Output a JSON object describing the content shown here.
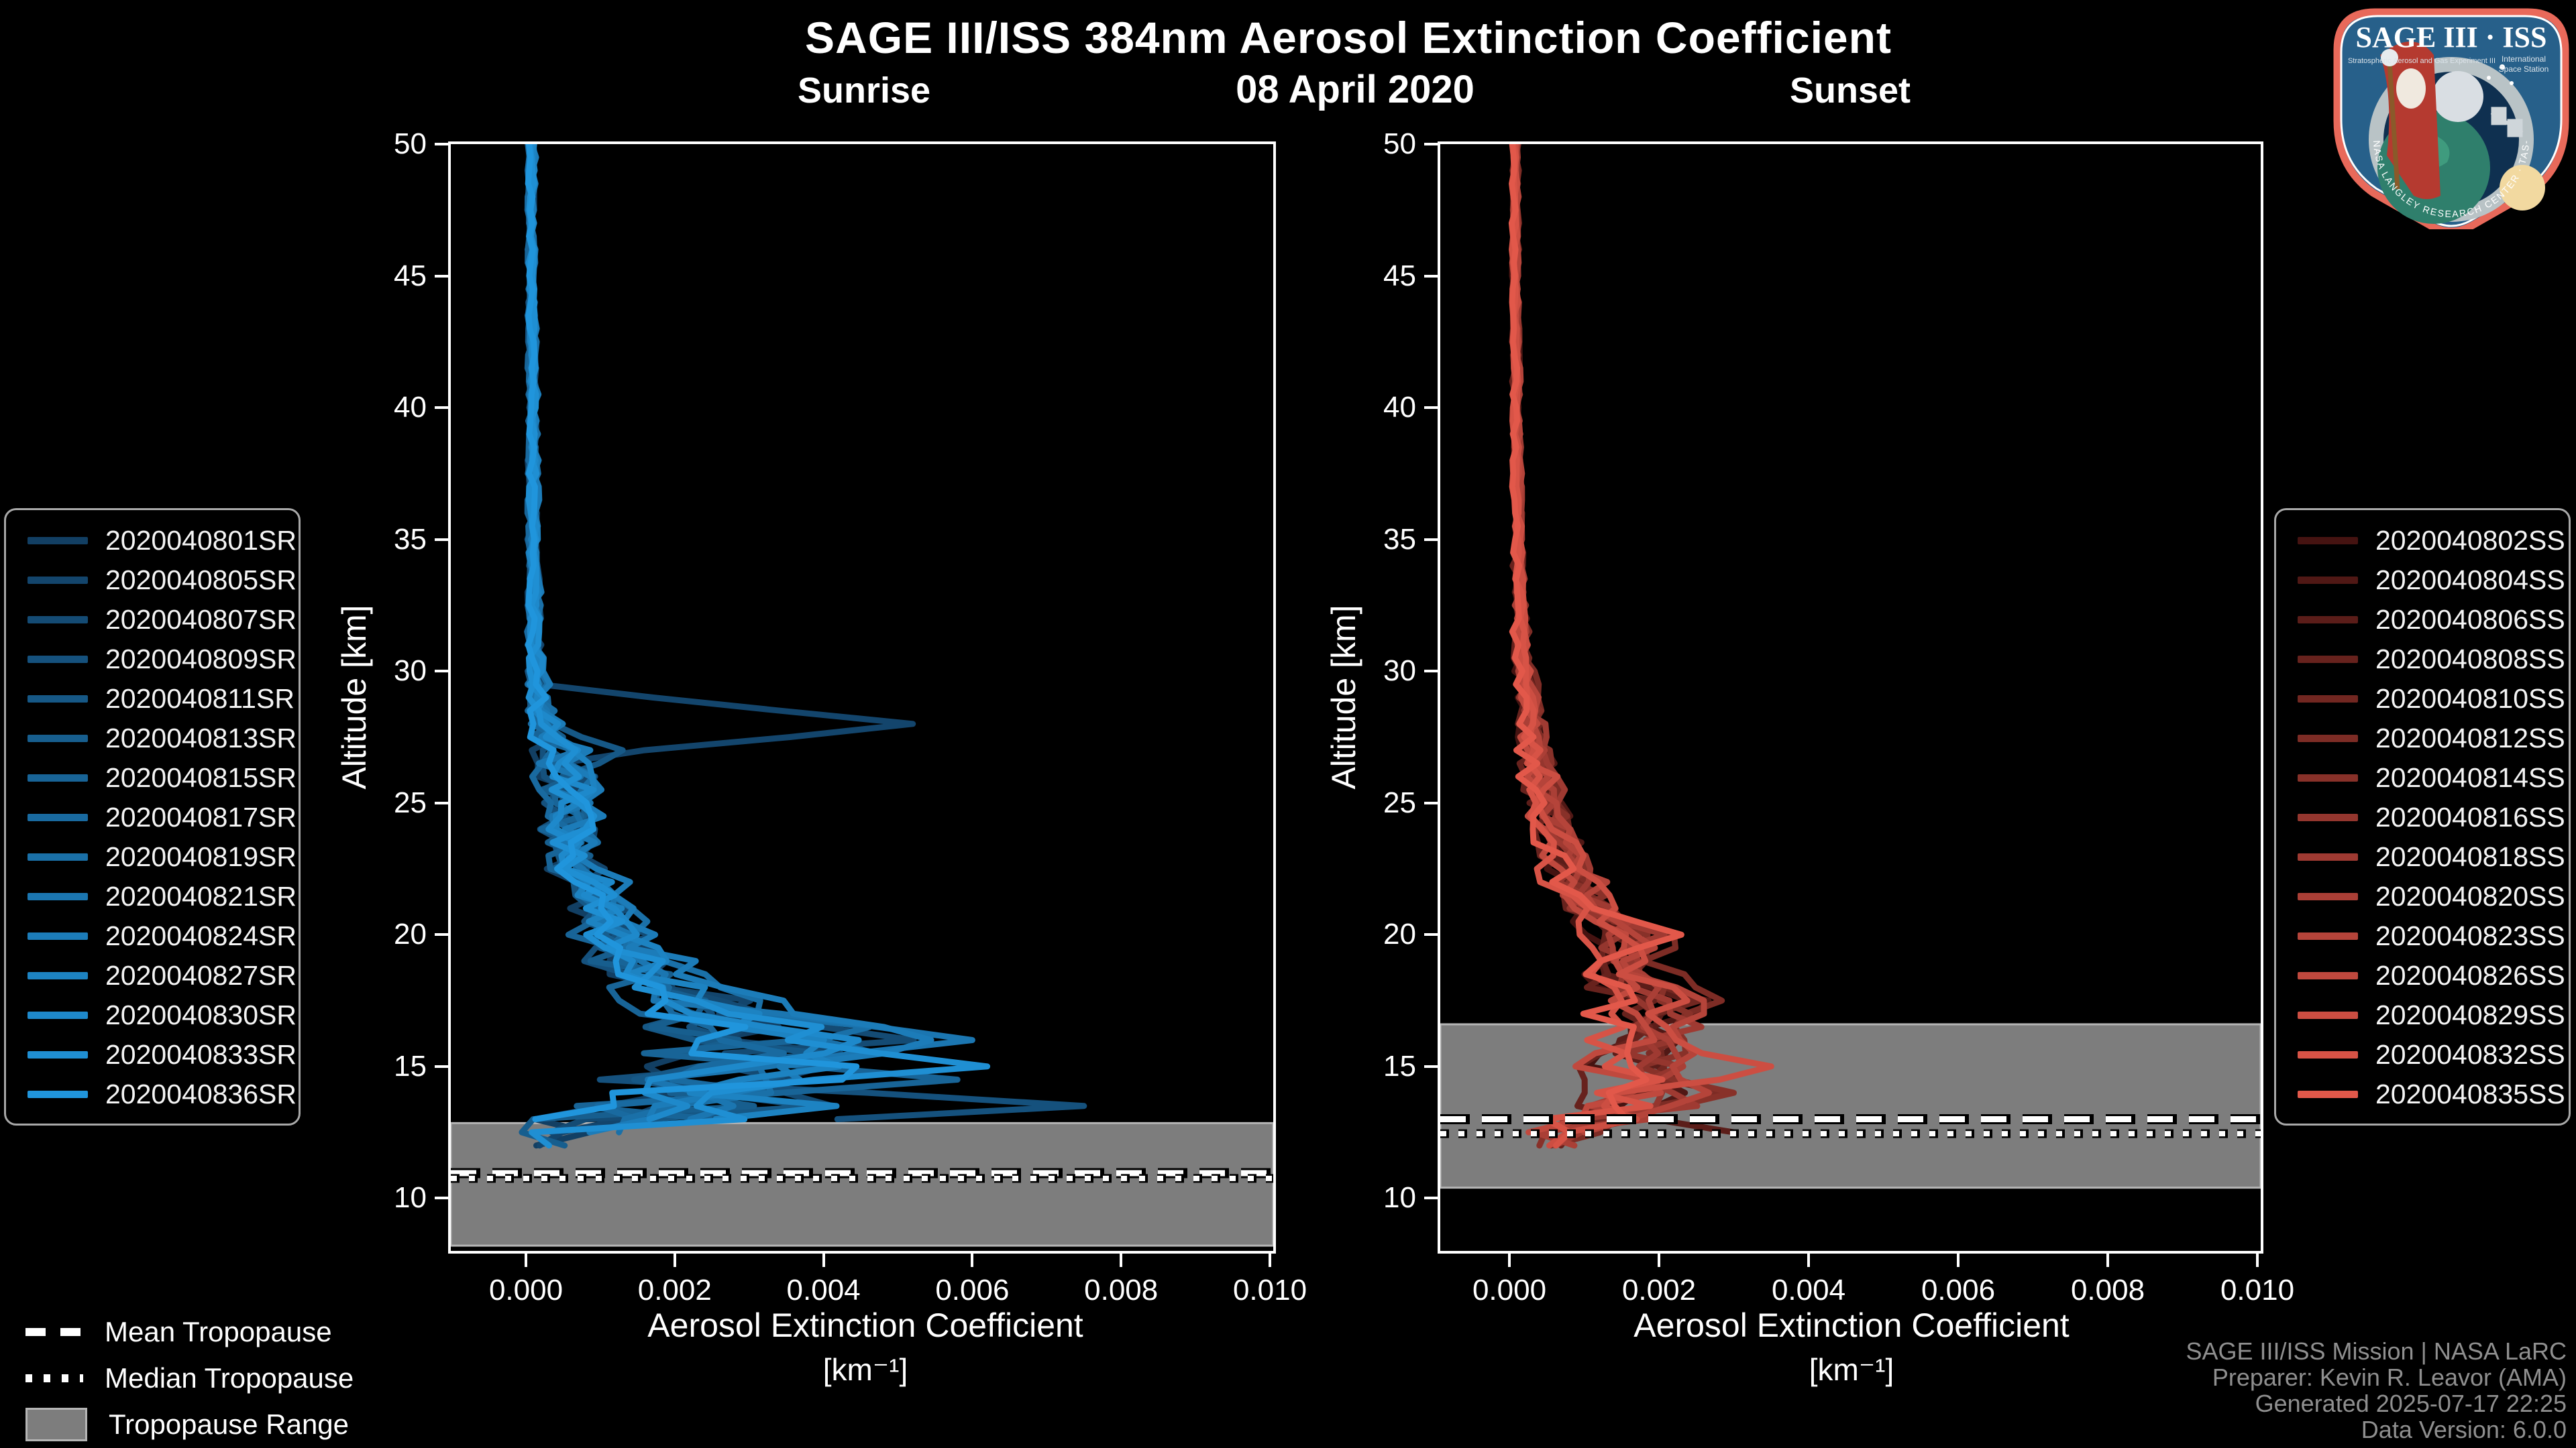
{
  "header": {
    "title": "SAGE III/ISS 384nm Aerosol Extinction Coefficient",
    "date": "08 April 2020"
  },
  "axes": {
    "ylabel": "Altitude [km]",
    "xlabel_line1": "Aerosol Extinction Coefficient",
    "xlabel_line2": "[km⁻¹]",
    "y_range": [
      8,
      50
    ],
    "y_ticks": [
      50,
      45,
      40,
      35,
      30,
      25,
      20,
      15,
      10
    ],
    "x_ticks": [
      {
        "v": 0.0,
        "label": "0.000"
      },
      {
        "v": 0.002,
        "label": "0.002"
      },
      {
        "v": 0.004,
        "label": "0.004"
      },
      {
        "v": 0.006,
        "label": "0.006"
      },
      {
        "v": 0.008,
        "label": "0.008"
      },
      {
        "v": 0.01,
        "label": "0.010"
      }
    ]
  },
  "trop_legend": {
    "items": [
      {
        "label": "Mean Tropopause",
        "style": "dash"
      },
      {
        "label": "Median Tropopause",
        "style": "dot"
      },
      {
        "label": "Tropopause Range",
        "style": "range"
      }
    ]
  },
  "footer": {
    "lines": [
      "SAGE III/ISS Mission | NASA LaRC",
      "Preparer: Kevin R. Leavor (AMA)",
      "Generated 2025-07-17 22:25",
      "Data Version: 6.0.0"
    ]
  },
  "logo": {
    "title": "SAGE III · ISS",
    "sub_left": "Stratospheric Aerosol and Gas Experiment III",
    "sub_right1": "International",
    "sub_right2": "Space Station",
    "ring_text": "BALL · NASA LANGLEY RESEARCH CENTER · TAS-I · ESA",
    "border_color": "#e8695a",
    "field_color": "#27608a"
  },
  "chart_data": [
    {
      "type": "line",
      "panel": "sunrise",
      "title": "Sunrise",
      "x_range": [
        -0.001,
        0.01
      ],
      "ylim": [
        8,
        50
      ],
      "seed": 11,
      "end_alt": [
        11.6,
        13.0
      ],
      "tropopause": {
        "band_bottom_km": 8.2,
        "band_top_km": 12.85,
        "mean_km": 10.95,
        "median_km": 10.75
      },
      "series": [
        {
          "name": "2020040801SR",
          "color": "#123F63"
        },
        {
          "name": "2020040805SR",
          "color": "#13456C"
        },
        {
          "name": "2020040807SR",
          "color": "#144B74"
        },
        {
          "name": "2020040809SR",
          "color": "#15517D"
        },
        {
          "name": "2020040811SR",
          "color": "#165886"
        },
        {
          "name": "2020040813SR",
          "color": "#175E8E"
        },
        {
          "name": "2020040815SR",
          "color": "#186497"
        },
        {
          "name": "2020040817SR",
          "color": "#196AA0"
        },
        {
          "name": "2020040819SR",
          "color": "#1A70A8"
        },
        {
          "name": "2020040821SR",
          "color": "#1B76B1"
        },
        {
          "name": "2020040824SR",
          "color": "#1C7CB9"
        },
        {
          "name": "2020040827SR",
          "color": "#1D83C2"
        },
        {
          "name": "2020040830SR",
          "color": "#1E89CB"
        },
        {
          "name": "2020040833SR",
          "color": "#1F8FD3"
        },
        {
          "name": "2020040836SR",
          "color": "#2095DC"
        }
      ],
      "base_profile": [
        [
          50,
          8e-05,
          4e-05
        ],
        [
          45,
          8e-05,
          4e-05
        ],
        [
          40,
          0.0001,
          5e-05
        ],
        [
          35,
          0.0001,
          6e-05
        ],
        [
          32,
          0.00012,
          8e-05
        ],
        [
          30,
          0.00015,
          0.0001
        ],
        [
          29,
          0.0002,
          0.00015
        ],
        [
          28,
          0.00028,
          0.0002
        ],
        [
          27,
          0.00045,
          0.00035
        ],
        [
          26,
          0.0006,
          0.00035
        ],
        [
          25,
          0.00062,
          0.0003
        ],
        [
          24,
          0.0007,
          0.00038
        ],
        [
          23,
          0.00072,
          0.0003
        ],
        [
          22,
          0.0009,
          0.0003
        ],
        [
          21,
          0.0011,
          0.00035
        ],
        [
          20,
          0.0013,
          0.0004
        ],
        [
          19,
          0.0016,
          0.00045
        ],
        [
          18,
          0.0021,
          0.00055
        ],
        [
          17,
          0.0028,
          0.0008
        ],
        [
          16,
          0.0038,
          0.0013
        ],
        [
          15,
          0.0036,
          0.0015
        ],
        [
          14,
          0.0031,
          0.0017
        ],
        [
          13.5,
          0.0028,
          0.0018
        ],
        [
          13,
          0.0018,
          0.0014
        ],
        [
          12.5,
          0.0009,
          0.0008
        ],
        [
          12,
          0.0004,
          0.0004
        ],
        [
          11.5,
          0.0003,
          0.0003
        ]
      ],
      "features": [
        {
          "series": 1,
          "alt": 28.0,
          "value": 0.0052,
          "width": 1.4
        },
        {
          "series": 4,
          "alt": 27.0,
          "value": 0.0013,
          "width": 1.0
        },
        {
          "series": 9,
          "alt": 16.0,
          "value": 0.006,
          "width": 1.2
        },
        {
          "series": 13,
          "alt": 15.0,
          "value": 0.0062,
          "width": 1.0
        },
        {
          "series": 6,
          "alt": 14.5,
          "value": 0.0058,
          "width": 1.0
        },
        {
          "series": 3,
          "alt": 13.5,
          "value": 0.0075,
          "width": 0.9
        }
      ]
    },
    {
      "type": "line",
      "panel": "sunset",
      "title": "Sunset",
      "x_range": [
        -0.001,
        0.01
      ],
      "ylim": [
        8,
        50
      ],
      "seed": 23,
      "end_alt": [
        11.8,
        12.7
      ],
      "tropopause": {
        "band_bottom_km": 10.4,
        "band_top_km": 16.6,
        "mean_km": 13.0,
        "median_km": 12.45
      },
      "series": [
        {
          "name": "2020040802SS",
          "color": "#451311"
        },
        {
          "name": "2020040804SS",
          "color": "#501815"
        },
        {
          "name": "2020040806SS",
          "color": "#5B1D19"
        },
        {
          "name": "2020040808SS",
          "color": "#67221D"
        },
        {
          "name": "2020040810SS",
          "color": "#722721"
        },
        {
          "name": "2020040812SS",
          "color": "#7D2C25"
        },
        {
          "name": "2020040814SS",
          "color": "#883129"
        },
        {
          "name": "2020040816SS",
          "color": "#94362E"
        },
        {
          "name": "2020040818SS",
          "color": "#9F3A32"
        },
        {
          "name": "2020040820SS",
          "color": "#AA3F36"
        },
        {
          "name": "2020040823SS",
          "color": "#B5443A"
        },
        {
          "name": "2020040826SS",
          "color": "#C0493E"
        },
        {
          "name": "2020040829SS",
          "color": "#CC4E42"
        },
        {
          "name": "2020040832SS",
          "color": "#D75346"
        },
        {
          "name": "2020040835SS",
          "color": "#E2584A"
        }
      ],
      "base_profile": [
        [
          50,
          8e-05,
          3e-05
        ],
        [
          45,
          8e-05,
          3e-05
        ],
        [
          40,
          0.0001,
          4e-05
        ],
        [
          35,
          0.00012,
          5e-05
        ],
        [
          32,
          0.00015,
          8e-05
        ],
        [
          30,
          0.0002,
          0.0001
        ],
        [
          28,
          0.0003,
          0.00015
        ],
        [
          26,
          0.00042,
          0.0002
        ],
        [
          24,
          0.0006,
          0.00022
        ],
        [
          22,
          0.0009,
          0.00028
        ],
        [
          21,
          0.0011,
          0.0003
        ],
        [
          20,
          0.0016,
          0.00035
        ],
        [
          19,
          0.0015,
          0.0003
        ],
        [
          18,
          0.0017,
          0.00038
        ],
        [
          17.5,
          0.0021,
          0.00045
        ],
        [
          17,
          0.0019,
          0.0004
        ],
        [
          16,
          0.0019,
          0.00048
        ],
        [
          15,
          0.0018,
          0.0006
        ],
        [
          14,
          0.0019,
          0.0007
        ],
        [
          13.5,
          0.0016,
          0.0007
        ],
        [
          13,
          0.0013,
          0.0007
        ],
        [
          12.5,
          0.0009,
          0.0006
        ],
        [
          12,
          0.0005,
          0.0004
        ],
        [
          11.5,
          0.0004,
          0.0003
        ]
      ],
      "features": [
        {
          "series": 12,
          "alt": 15.0,
          "value": 0.0035,
          "width": 1.0
        },
        {
          "series": 6,
          "alt": 14.0,
          "value": 0.003,
          "width": 0.9
        },
        {
          "series": 2,
          "alt": 12.5,
          "value": 0.003,
          "width": 0.8
        },
        {
          "series": 10,
          "alt": 17.5,
          "value": 0.0026,
          "width": 1.0
        },
        {
          "series": 14,
          "alt": 20.0,
          "value": 0.0023,
          "width": 1.2
        }
      ]
    }
  ]
}
